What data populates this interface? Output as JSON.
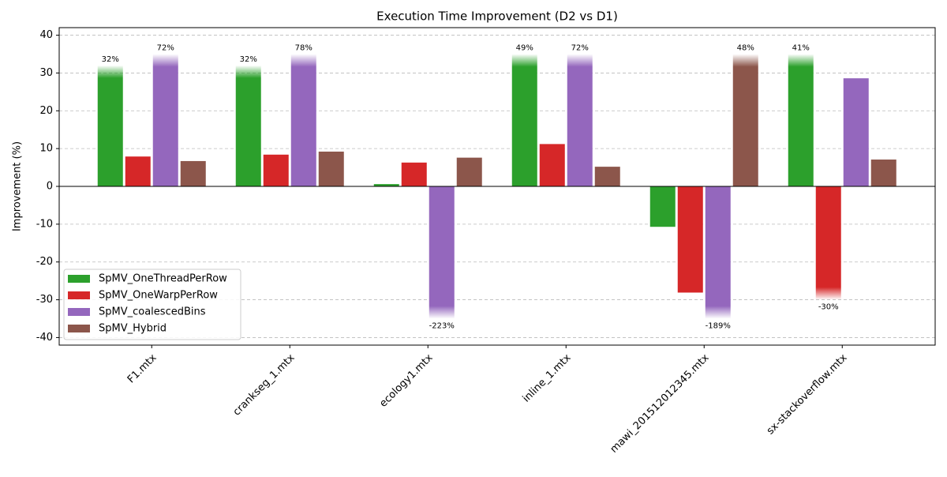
{
  "chart_data": {
    "type": "bar",
    "title": "Execution Time Improvement (D2 vs D1)",
    "y_label": "Improvement (%)",
    "categories": [
      "F1.mtx",
      "crankseg_1.mtx",
      "ecology1.mtx",
      "inline_1.mtx",
      "mawi_201512012345.mtx",
      "sx-stackoverflow.mtx"
    ],
    "series": [
      {
        "name": "SpMV_OneThreadPerRow",
        "color": "#2ca02c",
        "values": [
          32,
          32,
          0.6,
          49,
          -10.7,
          41
        ],
        "value_labels": [
          "32%",
          "32%",
          null,
          "49%",
          null,
          "41%"
        ]
      },
      {
        "name": "SpMV_OneWarpPerRow",
        "color": "#d62728",
        "values": [
          7.9,
          8.4,
          6.3,
          11.2,
          -28.1,
          -30
        ],
        "value_labels": [
          null,
          null,
          null,
          null,
          null,
          "-30%"
        ]
      },
      {
        "name": "SpMV_coalescedBins",
        "color": "#9467bd",
        "values": [
          72,
          78,
          -223,
          72,
          -189,
          28.6
        ],
        "value_labels": [
          "72%",
          "78%",
          "-223%",
          "72%",
          "-189%",
          null
        ]
      },
      {
        "name": "SpMV_Hybrid",
        "color": "#8c564b",
        "values": [
          6.7,
          9.2,
          7.6,
          5.2,
          48,
          7.1
        ],
        "value_labels": [
          null,
          null,
          null,
          null,
          "48%",
          null
        ]
      }
    ],
    "ylim": [
      -42,
      42
    ],
    "yticks": [
      -40,
      -30,
      -20,
      -10,
      0,
      10,
      20,
      30,
      40
    ],
    "grid": true,
    "legend": "lower left"
  }
}
